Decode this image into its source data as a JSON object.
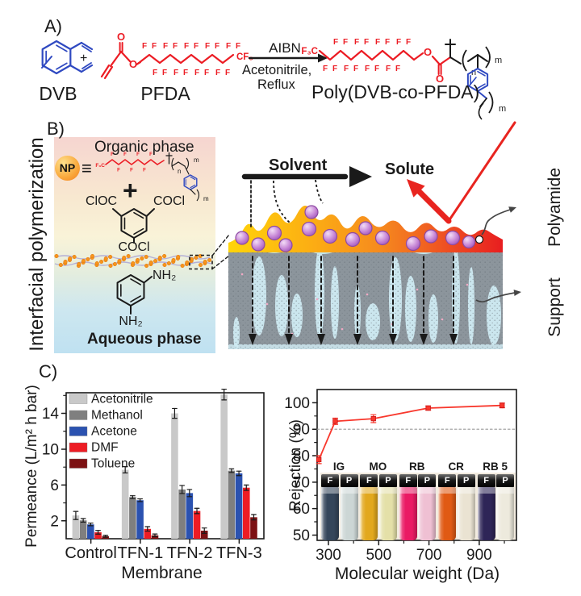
{
  "panel_a": {
    "label": "A)",
    "dvb_label": "DVB",
    "plus": "+",
    "pfda_label": "PFDA",
    "arrow_top": "AIBN",
    "arrow_bottom1": "Acetonitrile,",
    "arrow_bottom2": "Reflux",
    "product_label": "Poly(DVB-co-PFDA)"
  },
  "panel_b": {
    "label": "B)",
    "side_label": "Interfacial polymerization",
    "organic_phase": "Organic phase",
    "np": "NP",
    "equiv": "≡",
    "plus": "+",
    "tmc_left": "ClOC",
    "tmc_right": "COCl",
    "tmc_bottom": "COCl",
    "nh2": "NH₂",
    "aqueous_phase": "Aqueous phase",
    "solvent": "Solvent",
    "solute": "Solute",
    "polyamide": "Polyamide",
    "support": "Support"
  },
  "panel_c": {
    "label": "C)"
  },
  "atoms": {
    "f": "F",
    "o": "O",
    "cf3": "CF₃",
    "f3c": "F₃C",
    "n": "n",
    "m": "m"
  },
  "colors": {
    "chem_blue": "#2f49c1",
    "chem_red": "#ec1c24",
    "ink": "#1a1a1a",
    "solute_red": "#e8241f",
    "interface_dot": "#f7941c",
    "interface_line": "#b4afd6",
    "sphere": "#c98ad8",
    "support_gray": "#8c959c",
    "support_pore_blue": "#cfeaf2",
    "polyamide_gradient": [
      "#ffd40a",
      "#fcae13",
      "#f68b1e",
      "#ee4e22",
      "#e81e20"
    ]
  },
  "chart_data": [
    {
      "type": "bar",
      "xlabel": "Membrane",
      "ylabel": "Permeance (L/m² h bar)",
      "categories": [
        "Control",
        "TFN-1",
        "TFN-2",
        "TFN-3"
      ],
      "series": [
        {
          "name": "Acetonitrile",
          "color": "#c9c9c9",
          "values": [
            2.6,
            7.7,
            14.0,
            16.1
          ],
          "errors": [
            0.45,
            0.35,
            0.55,
            0.6
          ]
        },
        {
          "name": "Methanol",
          "color": "#7f7f7f",
          "values": [
            2.05,
            4.65,
            5.5,
            7.6
          ],
          "errors": [
            0.2,
            0.15,
            0.45,
            0.2
          ]
        },
        {
          "name": "Acetone",
          "color": "#2b52b0",
          "values": [
            1.6,
            4.3,
            5.1,
            7.3
          ],
          "errors": [
            0.15,
            0.15,
            0.4,
            0.25
          ]
        },
        {
          "name": "DMF",
          "color": "#ed1c24",
          "values": [
            0.72,
            1.1,
            3.1,
            5.7
          ],
          "errors": [
            0.2,
            0.25,
            0.3,
            0.3
          ]
        },
        {
          "name": "Toluene",
          "color": "#7c1113",
          "values": [
            0.28,
            0.38,
            0.9,
            2.4
          ],
          "errors": [
            0.1,
            0.15,
            0.3,
            0.3
          ]
        }
      ],
      "ylim": [
        0,
        16.3
      ],
      "yticks": [
        2,
        6,
        10,
        14
      ],
      "yticks_minor": [
        4,
        8,
        12,
        16
      ],
      "legend_position": "top-left",
      "grid": false
    },
    {
      "type": "line",
      "xlabel": "Molecular weight (Da)",
      "ylabel": "Rejection (%)",
      "x": [
        262,
        327,
        479,
        697,
        991
      ],
      "y": [
        78.5,
        93,
        94,
        98,
        99
      ],
      "errors": [
        1.5,
        1.2,
        1.5,
        0.8,
        0.9
      ],
      "line_color": "#f8372c",
      "dashed_reference_y": 90,
      "xlim": [
        255,
        1048
      ],
      "ylim": [
        48,
        105
      ],
      "xticks": [
        300,
        500,
        700,
        900
      ],
      "xticks_minor": [
        400,
        600,
        800,
        1000
      ],
      "yticks": [
        50,
        60,
        70,
        80,
        90,
        100
      ],
      "yticks_minor": [
        55,
        65,
        75,
        85,
        95
      ],
      "grid": false,
      "inset_vials": {
        "cap_labels": {
          "feed": "F",
          "permeate": "P"
        },
        "groups": [
          {
            "label": "IG",
            "feed_color": "#35465a",
            "permeate_color": "#ccd6d5"
          },
          {
            "label": "MO",
            "feed_color": "#e2a81e",
            "permeate_color": "#e4e0a8"
          },
          {
            "label": "RB",
            "feed_color": "#ea1a64",
            "permeate_color": "#efc0d3"
          },
          {
            "label": "CR",
            "feed_color": "#e05a14",
            "permeate_color": "#eae3d2"
          },
          {
            "label": "RB 5",
            "feed_color": "#2e2557",
            "permeate_color": "#edeadd"
          }
        ]
      }
    }
  ]
}
